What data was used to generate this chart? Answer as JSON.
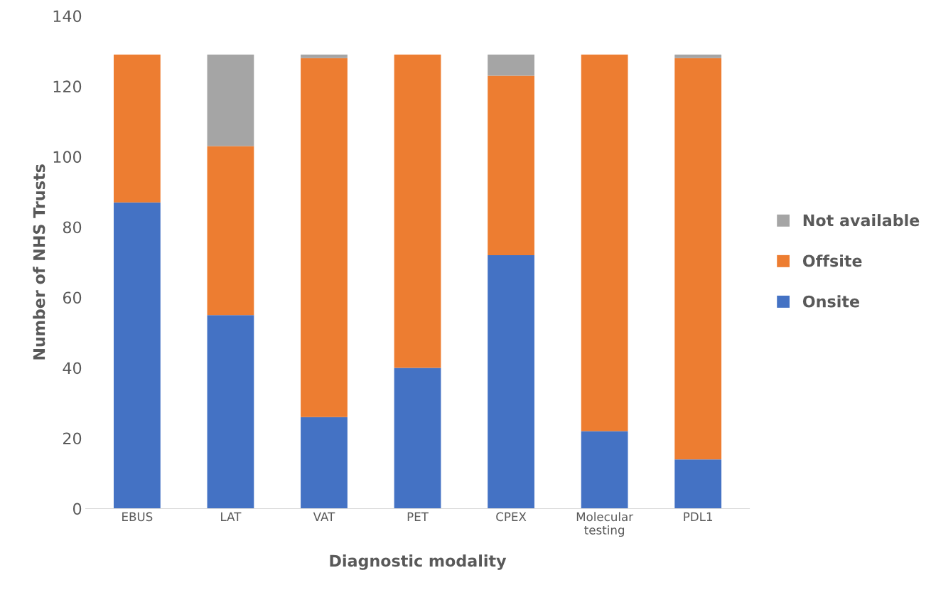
{
  "chart_data": {
    "type": "bar",
    "stacked": true,
    "xlabel": "Diagnostic modality",
    "ylabel": "Number of NHS Trusts",
    "categories": [
      "EBUS",
      "LAT",
      "VAT",
      "PET",
      "CPEX",
      "Molecular\ntesting",
      "PDL1"
    ],
    "series": [
      {
        "name": "Onsite",
        "color": "#4472c4",
        "values": [
          87,
          55,
          26,
          40,
          72,
          22,
          14
        ]
      },
      {
        "name": "Offsite",
        "color": "#ed7d31",
        "values": [
          42,
          48,
          102,
          89,
          51,
          107,
          114
        ]
      },
      {
        "name": "Not available",
        "color": "#a5a5a5",
        "values": [
          0,
          26,
          1,
          0,
          6,
          0,
          1
        ]
      }
    ],
    "ylim": [
      0,
      140
    ],
    "yticks": [
      0,
      20,
      40,
      60,
      80,
      100,
      120,
      140
    ],
    "grid": false,
    "legend": "right"
  }
}
